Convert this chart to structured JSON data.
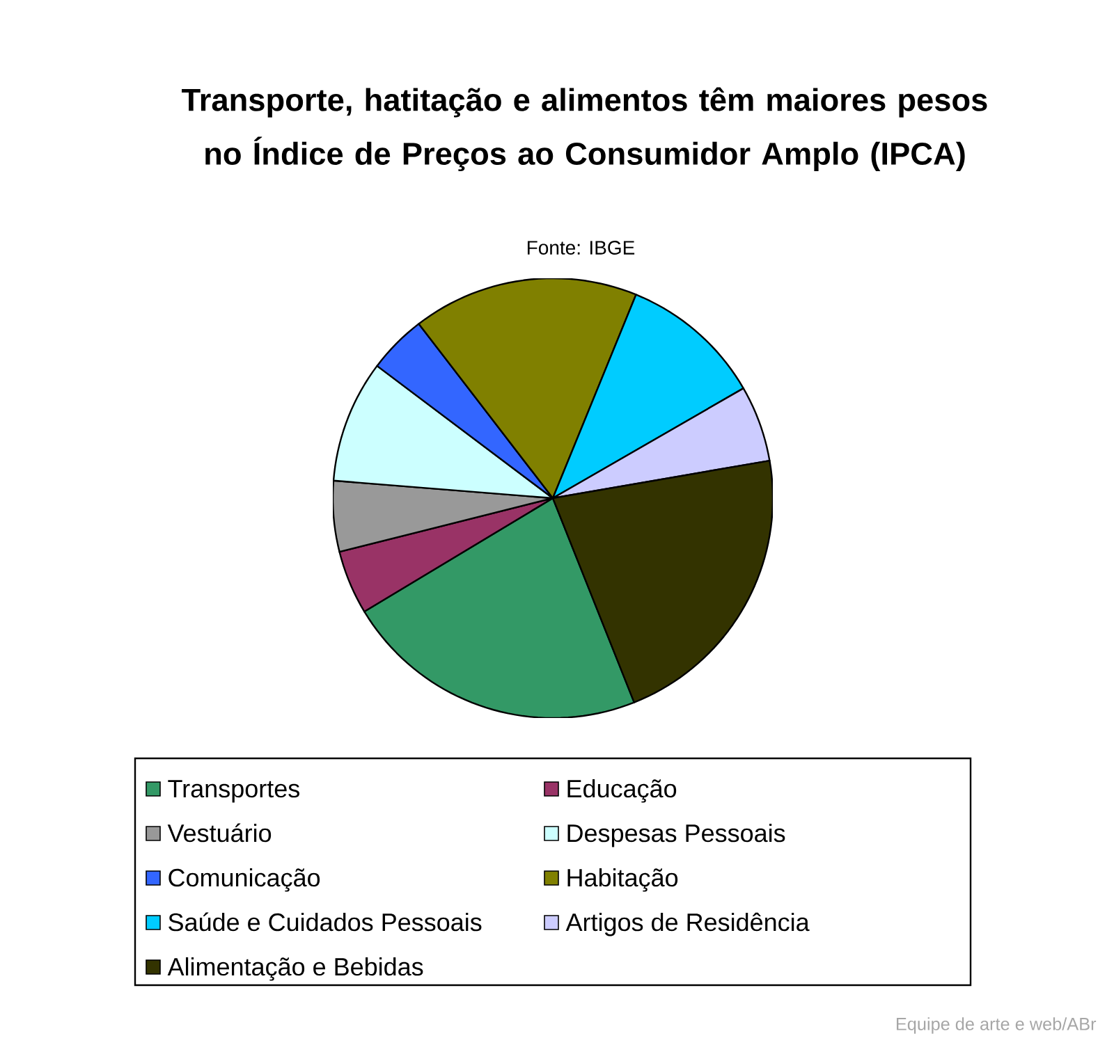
{
  "chart_data": {
    "type": "pie",
    "title": "Transporte, hatitação e alimentos têm maiores pesos no Índice de Preços ao Consumidor Amplo (IPCA)",
    "categories": [
      "Transportes",
      "Educação",
      "Vestuário",
      "Despesas Pessoais",
      "Comunicação",
      "Habitação",
      "Saúde e Cuidados Pessoais",
      "Artigos de Residência",
      "Alimentação e Bebidas"
    ],
    "values": [
      22.4,
      4.7,
      5.2,
      9.0,
      4.3,
      16.6,
      10.5,
      5.6,
      21.7
    ],
    "colors": [
      "#339966",
      "#993366",
      "#999999",
      "#ccffff",
      "#3366ff",
      "#808000",
      "#00ccff",
      "#ccccff",
      "#333300"
    ],
    "legend": "bottom",
    "annotations": [
      "Fonte: IBGE",
      "Equipe de arte e web/ABr"
    ]
  }
}
